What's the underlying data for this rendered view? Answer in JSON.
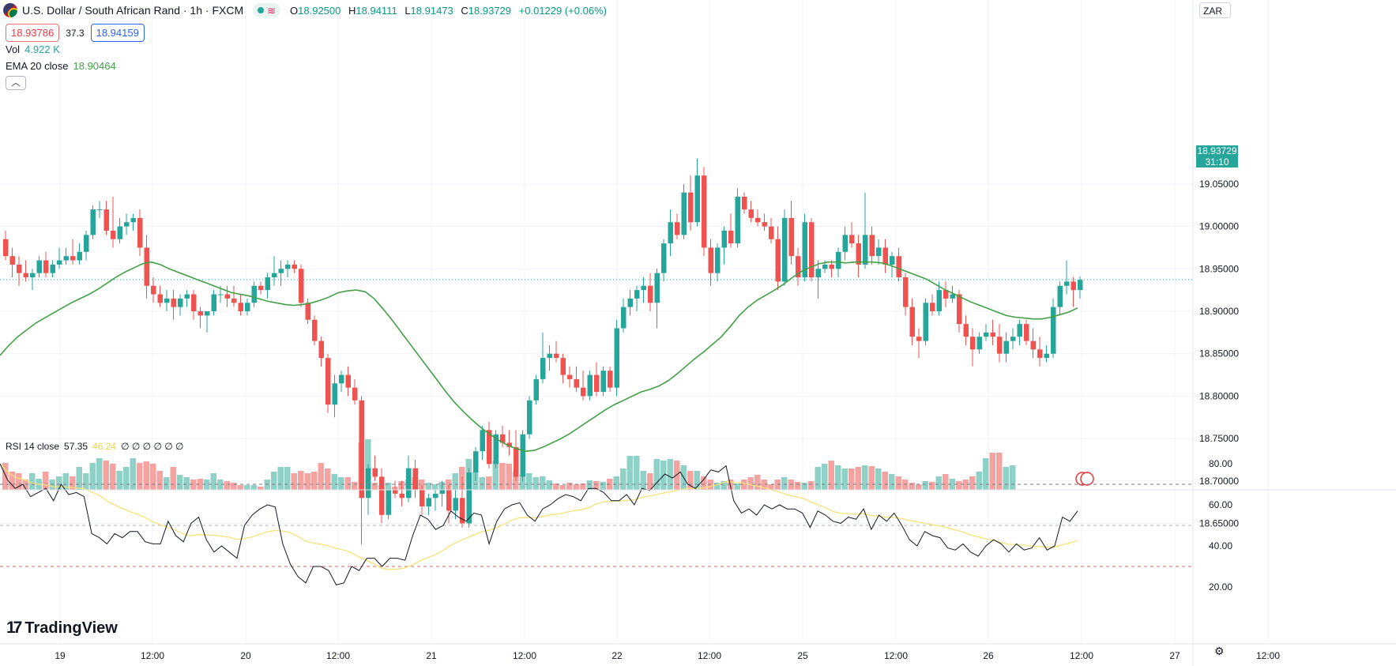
{
  "header": {
    "title": "U.S. Dollar / South African Rand · 1h · FXCM",
    "open_label": "O",
    "open": "18.92500",
    "high_label": "H",
    "high": "18.94111",
    "low_label": "L",
    "low": "18.91473",
    "close_label": "C",
    "close": "18.93729",
    "change": "+0.01229 (+0.06%)"
  },
  "trade": {
    "sell": "18.93786",
    "spread": "37.3",
    "buy": "18.94159"
  },
  "indicators": {
    "vol_label": "Vol",
    "vol_value": "4.922 K",
    "ema_label": "EMA 20 close",
    "ema_value": "18.90464",
    "rsi_label": "RSI 14 close",
    "rsi_value": "57.35",
    "rsi_ma_value": "46.24",
    "rsi_extra": "∅ ∅ ∅ ∅ ∅ ∅"
  },
  "currency": "ZAR",
  "last_price": "18.93729",
  "countdown": "31:10",
  "branding": "TradingView",
  "colors": {
    "up": "#26a69a",
    "down": "#ef5350",
    "ema": "#43a047",
    "rsi": "#131722",
    "rsi_ma": "#f5e37a"
  },
  "chart_data": {
    "type": "candlestick",
    "price_axis": {
      "ticks": [
        18.65,
        18.7,
        18.75,
        18.8,
        18.85,
        18.9,
        18.95,
        19.0,
        19.05
      ],
      "labels": [
        "18.65000",
        "18.70000",
        "18.75000",
        "18.80000",
        "18.85000",
        "18.90000",
        "18.95000",
        "19.00000",
        "19.05000"
      ]
    },
    "rsi_axis": {
      "ticks": [
        20,
        40,
        60,
        80
      ],
      "labels": [
        "20.00",
        "40.00",
        "60.00",
        "80.00"
      ],
      "bands": [
        70,
        50,
        30
      ]
    },
    "time_labels": [
      "19",
      "12:00",
      "20",
      "12:00",
      "21",
      "12:00",
      "22",
      "12:00",
      "25",
      "12:00",
      "26",
      "12:00",
      "27",
      "12:00"
    ],
    "candles": [
      [
        18.985,
        18.995,
        18.96,
        18.965
      ],
      [
        18.965,
        18.975,
        18.94,
        18.955
      ],
      [
        18.955,
        18.965,
        18.93,
        18.945
      ],
      [
        18.945,
        18.96,
        18.935,
        18.94
      ],
      [
        18.94,
        18.95,
        18.925,
        18.945
      ],
      [
        18.945,
        18.965,
        18.94,
        18.96
      ],
      [
        18.96,
        18.97,
        18.94,
        18.945
      ],
      [
        18.945,
        18.96,
        18.94,
        18.955
      ],
      [
        18.955,
        18.975,
        18.95,
        18.96
      ],
      [
        18.96,
        18.975,
        18.955,
        18.965
      ],
      [
        18.965,
        18.985,
        18.955,
        18.96
      ],
      [
        18.96,
        18.98,
        18.955,
        18.97
      ],
      [
        18.97,
        18.995,
        18.96,
        18.99
      ],
      [
        18.99,
        19.025,
        18.985,
        19.02
      ],
      [
        19.02,
        19.03,
        19.01,
        19.02
      ],
      [
        19.02,
        19.03,
        18.99,
        18.995
      ],
      [
        18.995,
        19.035,
        18.975,
        18.985
      ],
      [
        18.985,
        19.01,
        18.98,
        19.0
      ],
      [
        19.0,
        19.015,
        18.99,
        19.005
      ],
      [
        19.005,
        19.015,
        18.995,
        19.01
      ],
      [
        19.01,
        19.02,
        18.965,
        18.975
      ],
      [
        18.975,
        18.99,
        18.915,
        18.93
      ],
      [
        18.93,
        18.94,
        18.91,
        18.92
      ],
      [
        18.92,
        18.93,
        18.905,
        18.91
      ],
      [
        18.91,
        18.925,
        18.9,
        18.915
      ],
      [
        18.915,
        18.925,
        18.89,
        18.905
      ],
      [
        18.905,
        18.92,
        18.895,
        18.915
      ],
      [
        18.915,
        18.925,
        18.905,
        18.92
      ],
      [
        18.92,
        18.925,
        18.89,
        18.9
      ],
      [
        18.9,
        18.905,
        18.88,
        18.895
      ],
      [
        18.895,
        18.9,
        18.875,
        18.9
      ],
      [
        18.9,
        18.925,
        18.895,
        18.92
      ],
      [
        18.92,
        18.93,
        18.91,
        18.92
      ],
      [
        18.92,
        18.93,
        18.905,
        18.915
      ],
      [
        18.915,
        18.93,
        18.905,
        18.91
      ],
      [
        18.91,
        18.92,
        18.895,
        18.9
      ],
      [
        18.9,
        18.915,
        18.895,
        18.91
      ],
      [
        18.91,
        18.935,
        18.905,
        18.93
      ],
      [
        18.93,
        18.935,
        18.92,
        18.925
      ],
      [
        18.925,
        18.945,
        18.915,
        18.94
      ],
      [
        18.94,
        18.965,
        18.93,
        18.945
      ],
      [
        18.945,
        18.96,
        18.93,
        18.95
      ],
      [
        18.95,
        18.96,
        18.94,
        18.955
      ],
      [
        18.955,
        18.96,
        18.945,
        18.95
      ],
      [
        18.95,
        18.955,
        18.905,
        18.91
      ],
      [
        18.91,
        18.915,
        18.885,
        18.89
      ],
      [
        18.89,
        18.895,
        18.86,
        18.865
      ],
      [
        18.865,
        18.87,
        18.835,
        18.845
      ],
      [
        18.845,
        18.85,
        18.78,
        18.79
      ],
      [
        18.79,
        18.825,
        18.775,
        18.815
      ],
      [
        18.815,
        18.83,
        18.805,
        18.825
      ],
      [
        18.825,
        18.835,
        18.8,
        18.81
      ],
      [
        18.81,
        18.82,
        18.79,
        18.795
      ],
      [
        18.795,
        18.8,
        18.625,
        18.68
      ],
      [
        18.68,
        18.72,
        18.66,
        18.715
      ],
      [
        18.715,
        18.73,
        18.7,
        18.705
      ],
      [
        18.705,
        18.715,
        18.65,
        18.66
      ],
      [
        18.66,
        18.69,
        18.655,
        18.69
      ],
      [
        18.69,
        18.7,
        18.68,
        18.685
      ],
      [
        18.685,
        18.7,
        18.67,
        18.68
      ],
      [
        18.68,
        18.73,
        18.675,
        18.715
      ],
      [
        18.715,
        18.725,
        18.68,
        18.69
      ],
      [
        18.69,
        18.695,
        18.66,
        18.67
      ],
      [
        18.67,
        18.685,
        18.66,
        18.68
      ],
      [
        18.68,
        18.69,
        18.665,
        18.685
      ],
      [
        18.685,
        18.7,
        18.67,
        18.69
      ],
      [
        18.69,
        18.695,
        18.65,
        18.665
      ],
      [
        18.665,
        18.69,
        18.655,
        18.68
      ],
      [
        18.68,
        18.705,
        18.645,
        18.65
      ],
      [
        18.65,
        18.715,
        18.645,
        18.71
      ],
      [
        18.71,
        18.74,
        18.7,
        18.735
      ],
      [
        18.735,
        18.765,
        18.725,
        18.76
      ],
      [
        18.76,
        18.77,
        18.715,
        18.72
      ],
      [
        18.72,
        18.76,
        18.715,
        18.755
      ],
      [
        18.755,
        18.765,
        18.74,
        18.745
      ],
      [
        18.745,
        18.76,
        18.73,
        18.74
      ],
      [
        18.74,
        18.76,
        18.7,
        18.705
      ],
      [
        18.705,
        18.76,
        18.7,
        18.755
      ],
      [
        18.755,
        18.8,
        18.75,
        18.795
      ],
      [
        18.795,
        18.825,
        18.79,
        18.82
      ],
      [
        18.82,
        18.875,
        18.815,
        18.845
      ],
      [
        18.845,
        18.86,
        18.83,
        18.85
      ],
      [
        18.85,
        18.865,
        18.84,
        18.845
      ],
      [
        18.845,
        18.85,
        18.815,
        18.825
      ],
      [
        18.825,
        18.835,
        18.81,
        18.82
      ],
      [
        18.82,
        18.835,
        18.805,
        18.81
      ],
      [
        18.81,
        18.83,
        18.795,
        18.8
      ],
      [
        18.8,
        18.83,
        18.795,
        18.825
      ],
      [
        18.825,
        18.84,
        18.8,
        18.805
      ],
      [
        18.805,
        18.835,
        18.8,
        18.83
      ],
      [
        18.83,
        18.835,
        18.805,
        18.81
      ],
      [
        18.81,
        18.89,
        18.8,
        18.88
      ],
      [
        18.88,
        18.915,
        18.875,
        18.905
      ],
      [
        18.905,
        18.925,
        18.895,
        18.915
      ],
      [
        18.915,
        18.93,
        18.9,
        18.925
      ],
      [
        18.925,
        18.94,
        18.91,
        18.93
      ],
      [
        18.93,
        18.945,
        18.9,
        18.91
      ],
      [
        18.91,
        18.95,
        18.88,
        18.945
      ],
      [
        18.945,
        18.985,
        18.935,
        18.98
      ],
      [
        18.98,
        19.02,
        18.965,
        19.005
      ],
      [
        19.005,
        19.015,
        18.985,
        18.99
      ],
      [
        18.99,
        19.05,
        18.985,
        19.04
      ],
      [
        19.04,
        19.06,
        18.995,
        19.005
      ],
      [
        19.005,
        19.08,
        19.0,
        19.06
      ],
      [
        19.06,
        19.07,
        18.965,
        18.975
      ],
      [
        18.975,
        18.985,
        18.93,
        18.945
      ],
      [
        18.945,
        18.98,
        18.935,
        18.975
      ],
      [
        18.975,
        19.0,
        18.955,
        18.995
      ],
      [
        18.995,
        19.015,
        18.975,
        18.98
      ],
      [
        18.98,
        19.045,
        18.975,
        19.035
      ],
      [
        19.035,
        19.04,
        19.015,
        19.02
      ],
      [
        19.02,
        19.03,
        19.005,
        19.01
      ],
      [
        19.01,
        19.02,
        19.0,
        19.005
      ],
      [
        19.005,
        19.015,
        18.995,
        19.0
      ],
      [
        19.0,
        19.01,
        18.98,
        18.985
      ],
      [
        18.985,
        19.0,
        18.925,
        18.935
      ],
      [
        18.935,
        19.02,
        18.93,
        19.01
      ],
      [
        19.01,
        19.03,
        18.955,
        18.965
      ],
      [
        18.965,
        18.975,
        18.93,
        18.94
      ],
      [
        18.94,
        19.015,
        18.935,
        19.005
      ],
      [
        19.005,
        19.01,
        18.935,
        18.94
      ],
      [
        18.94,
        18.96,
        18.915,
        18.95
      ],
      [
        18.95,
        18.96,
        18.945,
        18.955
      ],
      [
        18.955,
        18.96,
        18.94,
        18.95
      ],
      [
        18.95,
        18.975,
        18.94,
        18.97
      ],
      [
        18.97,
        19.0,
        18.96,
        18.99
      ],
      [
        18.99,
        19.005,
        18.975,
        18.98
      ],
      [
        18.98,
        18.99,
        18.94,
        18.955
      ],
      [
        18.955,
        19.04,
        18.95,
        18.99
      ],
      [
        18.99,
        19.0,
        18.955,
        18.965
      ],
      [
        18.965,
        18.985,
        18.955,
        18.975
      ],
      [
        18.975,
        18.985,
        18.945,
        18.955
      ],
      [
        18.955,
        18.97,
        18.94,
        18.965
      ],
      [
        18.965,
        18.975,
        18.935,
        18.94
      ],
      [
        18.94,
        18.945,
        18.895,
        18.905
      ],
      [
        18.905,
        18.915,
        18.86,
        18.87
      ],
      [
        18.87,
        18.88,
        18.845,
        18.865
      ],
      [
        18.865,
        18.915,
        18.86,
        18.91
      ],
      [
        18.91,
        18.92,
        18.895,
        18.9
      ],
      [
        18.9,
        18.935,
        18.895,
        18.925
      ],
      [
        18.925,
        18.935,
        18.905,
        18.915
      ],
      [
        18.915,
        18.93,
        18.91,
        18.92
      ],
      [
        18.92,
        18.925,
        18.875,
        18.885
      ],
      [
        18.885,
        18.895,
        18.86,
        18.87
      ],
      [
        18.87,
        18.88,
        18.835,
        18.855
      ],
      [
        18.855,
        18.875,
        18.85,
        18.87
      ],
      [
        18.87,
        18.885,
        18.865,
        18.875
      ],
      [
        18.875,
        18.89,
        18.86,
        18.87
      ],
      [
        18.87,
        18.885,
        18.84,
        18.85
      ],
      [
        18.85,
        18.875,
        18.84,
        18.865
      ],
      [
        18.865,
        18.88,
        18.855,
        18.87
      ],
      [
        18.87,
        18.89,
        18.86,
        18.885
      ],
      [
        18.885,
        18.89,
        18.86,
        18.865
      ],
      [
        18.865,
        18.88,
        18.845,
        18.855
      ],
      [
        18.855,
        18.87,
        18.835,
        18.845
      ],
      [
        18.845,
        18.86,
        18.84,
        18.85
      ],
      [
        18.85,
        18.915,
        18.845,
        18.905
      ],
      [
        18.905,
        18.935,
        18.895,
        18.93
      ],
      [
        18.93,
        18.96,
        18.92,
        18.935
      ],
      [
        18.935,
        18.94,
        18.905,
        18.925
      ],
      [
        18.925,
        18.941,
        18.915,
        18.937
      ]
    ],
    "volume": [
      34,
      23,
      21,
      13,
      21,
      14,
      23,
      13,
      17,
      21,
      17,
      29,
      21,
      34,
      40,
      37,
      33,
      24,
      29,
      40,
      34,
      36,
      33,
      24,
      16,
      29,
      19,
      16,
      13,
      14,
      13,
      21,
      13,
      11,
      9,
      6,
      6,
      6,
      4,
      13,
      23,
      29,
      29,
      21,
      24,
      21,
      23,
      34,
      27,
      20,
      16,
      16,
      10,
      60,
      64,
      9,
      6,
      9,
      4,
      11,
      13,
      16,
      13,
      9,
      7,
      10,
      13,
      21,
      29,
      39,
      23,
      16,
      17,
      37,
      34,
      33,
      23,
      19,
      21,
      16,
      17,
      12,
      8,
      6,
      9,
      7,
      8,
      12,
      11,
      10,
      14,
      17,
      27,
      43,
      43,
      24,
      21,
      39,
      37,
      39,
      37,
      31,
      24,
      24,
      17,
      13,
      9,
      11,
      13,
      8,
      13,
      16,
      19,
      13,
      7,
      13,
      16,
      13,
      10,
      9,
      11,
      29,
      33,
      37,
      31,
      27,
      27,
      29,
      31,
      30,
      27,
      23,
      20,
      17,
      13,
      9,
      7,
      11,
      10,
      17,
      20,
      14,
      11,
      13,
      17,
      23,
      40,
      47,
      47,
      29,
      31
    ],
    "ema": [
      18.848,
      18.86,
      18.87,
      18.878,
      18.886,
      18.892,
      18.898,
      18.904,
      18.91,
      18.915,
      18.92,
      18.926,
      18.933,
      18.94,
      18.946,
      18.951,
      18.956,
      18.958,
      18.955,
      18.95,
      18.946,
      18.942,
      18.938,
      18.934,
      18.93,
      18.926,
      18.922,
      18.92,
      18.918,
      18.915,
      18.912,
      18.91,
      18.908,
      18.907,
      18.908,
      18.91,
      18.913,
      18.917,
      18.922,
      18.924,
      18.925,
      18.923,
      18.915,
      18.903,
      18.89,
      18.876,
      18.862,
      18.848,
      18.834,
      18.82,
      18.806,
      18.793,
      18.782,
      18.772,
      18.763,
      18.755,
      18.748,
      18.742,
      18.738,
      18.735,
      18.736,
      18.74,
      18.745,
      18.75,
      18.756,
      18.763,
      18.77,
      18.777,
      18.784,
      18.79,
      18.795,
      18.8,
      18.805,
      18.808,
      18.812,
      18.818,
      18.826,
      18.835,
      18.844,
      18.852,
      18.861,
      18.87,
      18.882,
      18.895,
      18.905,
      18.913,
      18.919,
      18.925,
      18.932,
      18.94,
      18.947,
      18.952,
      18.956,
      18.958,
      18.958,
      18.957,
      18.958,
      18.958,
      18.958,
      18.957,
      18.954,
      18.95,
      18.946,
      18.942,
      18.938,
      18.932,
      18.926,
      18.921,
      18.916,
      18.911,
      18.907,
      18.903,
      18.899,
      18.895,
      18.893,
      18.892,
      18.891,
      18.891,
      18.893,
      18.896,
      18.899,
      18.904
    ],
    "rsi": [
      80,
      72,
      68,
      70,
      64,
      66,
      68,
      62,
      70,
      65,
      66,
      64,
      46,
      44,
      41,
      46,
      44,
      47,
      47,
      42,
      41,
      41,
      52,
      45,
      42,
      51,
      54,
      43,
      37,
      40,
      37,
      34,
      50,
      55,
      58,
      60,
      59,
      41,
      31,
      25,
      22,
      30,
      30,
      28,
      21,
      22,
      30,
      28,
      34,
      34,
      30,
      34,
      34,
      33,
      45,
      55,
      53,
      48,
      50,
      57,
      54,
      52,
      56,
      55,
      41,
      52,
      58,
      60,
      61,
      55,
      52,
      58,
      60,
      63,
      65,
      64,
      62,
      68,
      68,
      66,
      62,
      62,
      65,
      60,
      68,
      67,
      71,
      75,
      73,
      76,
      70,
      68,
      72,
      77,
      76,
      79,
      62,
      56,
      58,
      55,
      60,
      58,
      60,
      58,
      58,
      56,
      49,
      57,
      55,
      52,
      51,
      54,
      53,
      58,
      48,
      55,
      52,
      56,
      50,
      43,
      40,
      47,
      45,
      44,
      39,
      38,
      41,
      37,
      35,
      40,
      43,
      41,
      37,
      41,
      38,
      39,
      44,
      38,
      40,
      54,
      52,
      57
    ]
  }
}
